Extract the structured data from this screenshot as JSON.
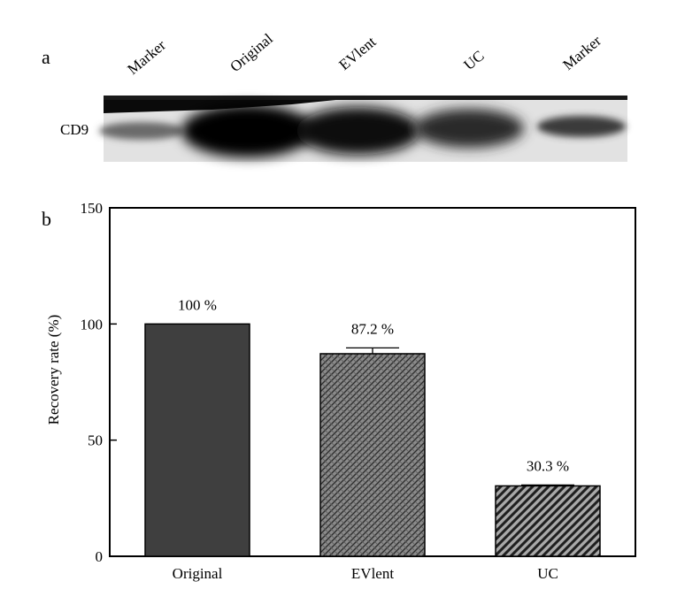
{
  "panel_a": {
    "label": "a",
    "lane_labels": [
      "Marker",
      "Original",
      "EVlent",
      "UC",
      "Marker"
    ],
    "row_label": "CD9"
  },
  "panel_b": {
    "label": "b"
  },
  "chart_data": {
    "type": "bar",
    "categories": [
      "Original",
      "EVlent",
      "UC"
    ],
    "values": [
      100,
      87.2,
      30.3
    ],
    "errors": [
      0,
      2.5,
      0.4
    ],
    "value_labels": [
      "100 %",
      "87.2 %",
      "30.3 %"
    ],
    "fills": [
      "solid",
      "crosshatch",
      "diagonal-stripes"
    ],
    "colors": {
      "solid": "#3f3f3f",
      "hatch_bg": "#8a8a8a",
      "hatch_line": "#2e2e2e",
      "stripe_bg": "#a8a8a8",
      "stripe_line": "#1f1f1f"
    },
    "title": "",
    "xlabel": "",
    "ylabel": "Recovery rate (%)",
    "ylim": [
      0,
      150
    ],
    "yticks": [
      "0",
      "50",
      "100",
      "150"
    ],
    "grid": false,
    "legend": "none"
  }
}
